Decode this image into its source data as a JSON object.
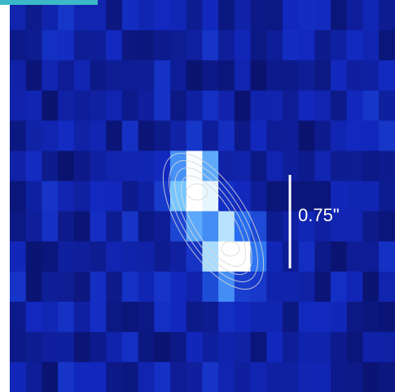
{
  "scale_bar": {
    "label": "0.75\""
  }
}
